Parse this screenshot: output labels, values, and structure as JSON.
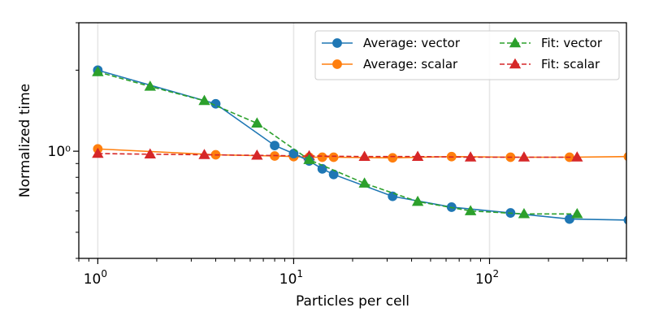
{
  "chart_data": {
    "type": "line",
    "xlabel": "Particles per cell",
    "ylabel": "Normalized time",
    "xscale": "log",
    "yscale": "log",
    "xlim": [
      0.8,
      500
    ],
    "ylim": [
      0.4,
      3.0
    ],
    "grid": "vertical major gridlines at decades",
    "legend_placement": "top-right",
    "legend_columns": 2,
    "x_ticks": [
      {
        "value": 1,
        "base": "10",
        "exp": "0"
      },
      {
        "value": 10,
        "base": "10",
        "exp": "1"
      },
      {
        "value": 100,
        "base": "10",
        "exp": "2"
      }
    ],
    "y_ticks": [
      {
        "value": 1,
        "label": "10⁰"
      }
    ],
    "series": [
      {
        "name": "Average: vector",
        "color": "#1f77b4",
        "line_style": "solid",
        "marker": "circle",
        "x": [
          1,
          4,
          8,
          10,
          12,
          14,
          16,
          32,
          64,
          128,
          256,
          512
        ],
        "y": [
          2.0,
          1.5,
          1.05,
          0.98,
          0.92,
          0.86,
          0.82,
          0.68,
          0.62,
          0.59,
          0.56,
          0.555
        ]
      },
      {
        "name": "Average: scalar",
        "color": "#ff7f0e",
        "line_style": "solid",
        "marker": "circle",
        "x": [
          1,
          4,
          8,
          10,
          12,
          14,
          16,
          32,
          64,
          128,
          256,
          512
        ],
        "y": [
          1.02,
          0.97,
          0.96,
          0.955,
          0.95,
          0.95,
          0.95,
          0.945,
          0.955,
          0.95,
          0.95,
          0.955
        ]
      },
      {
        "name": "Fit: vector",
        "color": "#2ca02c",
        "line_style": "dashed",
        "marker": "triangle",
        "x": [
          1,
          1.85,
          3.5,
          6.5,
          12,
          23,
          43,
          80,
          150,
          280
        ],
        "y": [
          1.97,
          1.74,
          1.54,
          1.27,
          0.93,
          0.76,
          0.65,
          0.6,
          0.585,
          0.585
        ]
      },
      {
        "name": "Fit: scalar",
        "color": "#d62728",
        "line_style": "dashed",
        "marker": "triangle",
        "x": [
          1,
          1.85,
          3.5,
          6.5,
          12,
          23,
          43,
          80,
          150,
          280
        ],
        "y": [
          0.98,
          0.975,
          0.97,
          0.965,
          0.96,
          0.955,
          0.955,
          0.95,
          0.95,
          0.95
        ]
      }
    ]
  }
}
